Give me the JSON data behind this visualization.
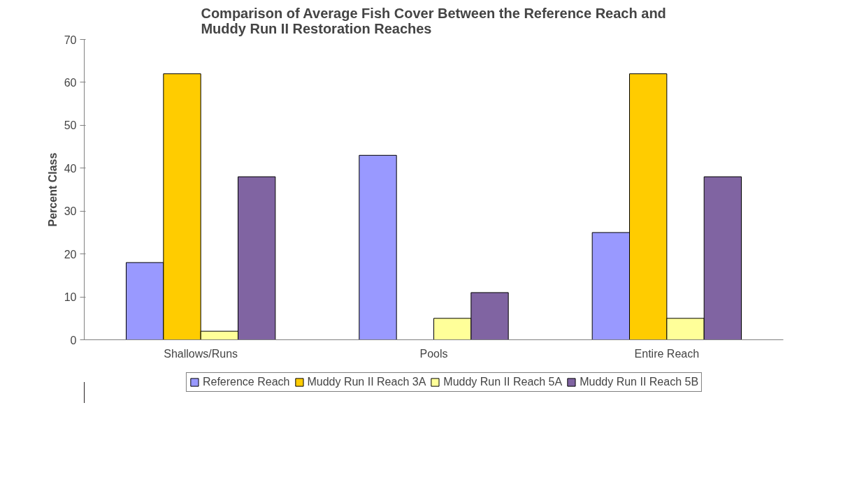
{
  "chart_data": {
    "type": "bar",
    "title": "Comparison of Average Fish Cover Between the Reference Reach and Muddy Run II Restoration Reaches",
    "ylabel": "Percent Class",
    "categories": [
      "Shallows/Runs",
      "Pools",
      "Entire Reach"
    ],
    "series": [
      {
        "name": "Reference Reach",
        "color": "#9999ff",
        "values": [
          18,
          43,
          25
        ]
      },
      {
        "name": "Muddy Run II Reach 3A",
        "color": "#ffcc00",
        "values": [
          62,
          null,
          62
        ]
      },
      {
        "name": "Muddy Run II Reach 5A",
        "color": "#ffff99",
        "values": [
          2,
          5,
          5
        ]
      },
      {
        "name": "Muddy Run II Reach 5B",
        "color": "#8064a2",
        "values": [
          38,
          11,
          38
        ]
      }
    ],
    "ylim": [
      0,
      70
    ],
    "yticks": [
      0,
      10,
      20,
      30,
      40,
      50,
      60,
      70
    ],
    "grid": false,
    "legend": "bottom"
  }
}
